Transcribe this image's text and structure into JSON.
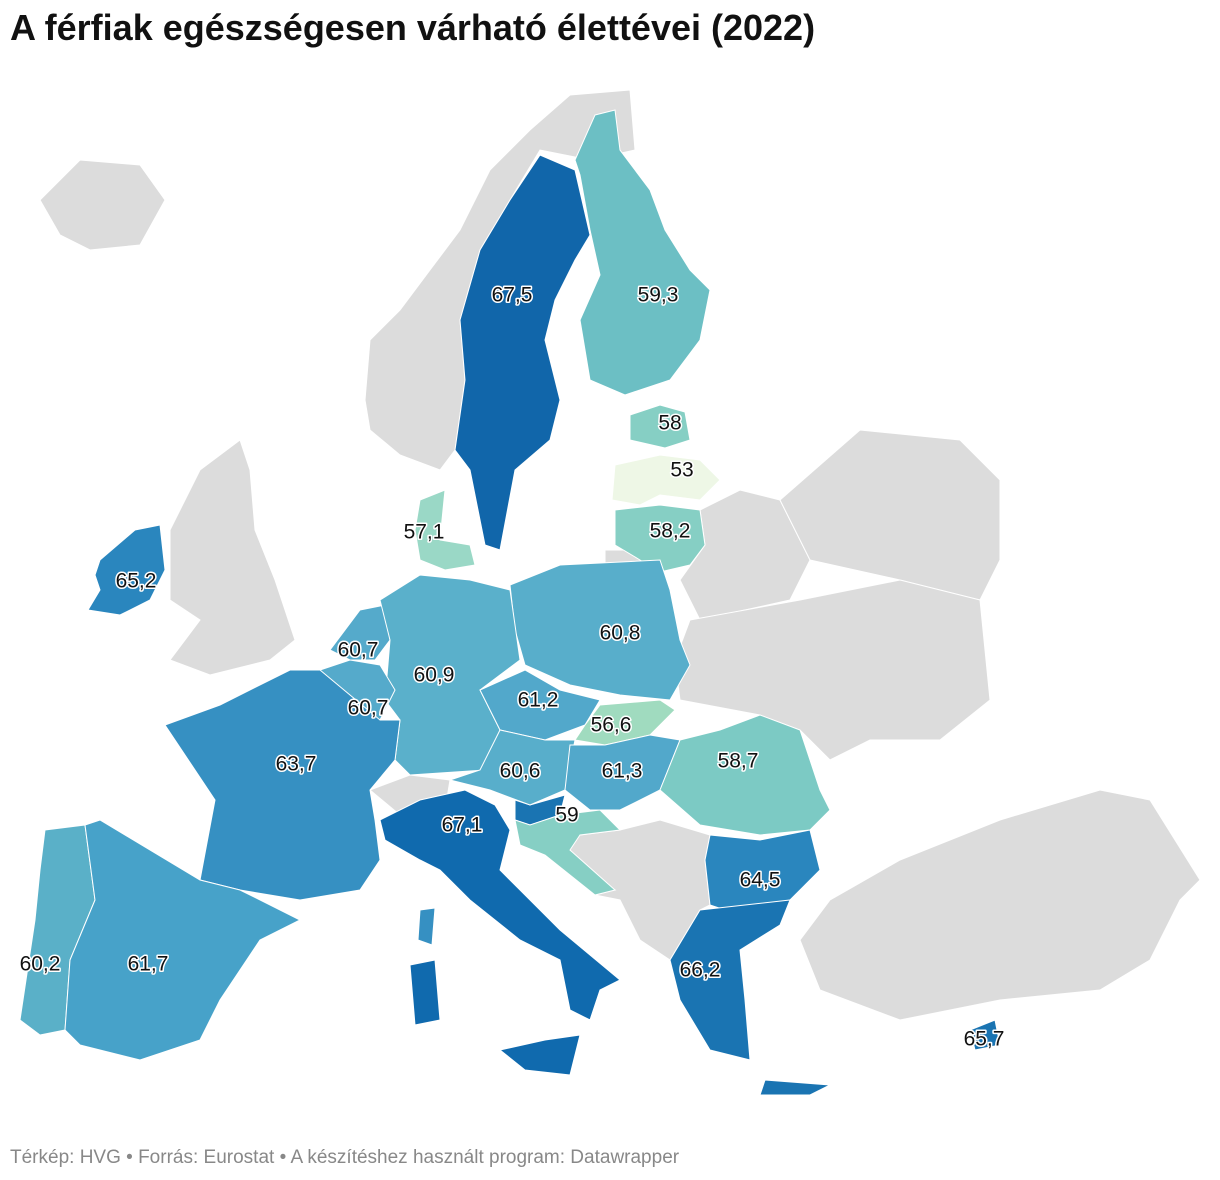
{
  "chart_data": {
    "type": "choropleth",
    "title": "A férfiak egészségesen várható élettévei (2022)",
    "footer": "Térkép: HVG • Forrás: Eurostat • A készítéshez használt program: Datawrapper",
    "values": [
      67.5,
      59.3,
      58,
      53,
      58.2,
      57.1,
      65.2,
      60.8,
      60.7,
      60.9,
      60.7,
      61.2,
      56.6,
      63.7,
      60.6,
      61.3,
      58.7,
      59,
      67.1,
      64.5,
      60.2,
      61.7,
      66.2,
      65.7
    ],
    "value_labels": [
      "67,5",
      "59,3",
      "58",
      "53",
      "58,2",
      "57,1",
      "65,2",
      "60,8",
      "60,7",
      "60,9",
      "60,7",
      "61,2",
      "56,6",
      "63,7",
      "60,6",
      "61,3",
      "58,7",
      "59",
      "67,1",
      "64,5",
      "60,2",
      "61,7",
      "66,2",
      "65,7"
    ],
    "colors": [
      "#1166aa",
      "#6cbfc4",
      "#86cfc4",
      "#eef7e6",
      "#86cfc4",
      "#9ad8c6",
      "#2a86be",
      "#58aecb",
      "#55aacb",
      "#5ab0cb",
      "#55aacb",
      "#52a8cb",
      "#a0dbbf",
      "#3690c2",
      "#58aecb",
      "#52a8cb",
      "#7ccac4",
      "#86cfc4",
      "#106aae",
      "#2a86be",
      "#5ab0c8",
      "#47a2c9",
      "#1a74b2",
      "#1a74b2"
    ]
  }
}
